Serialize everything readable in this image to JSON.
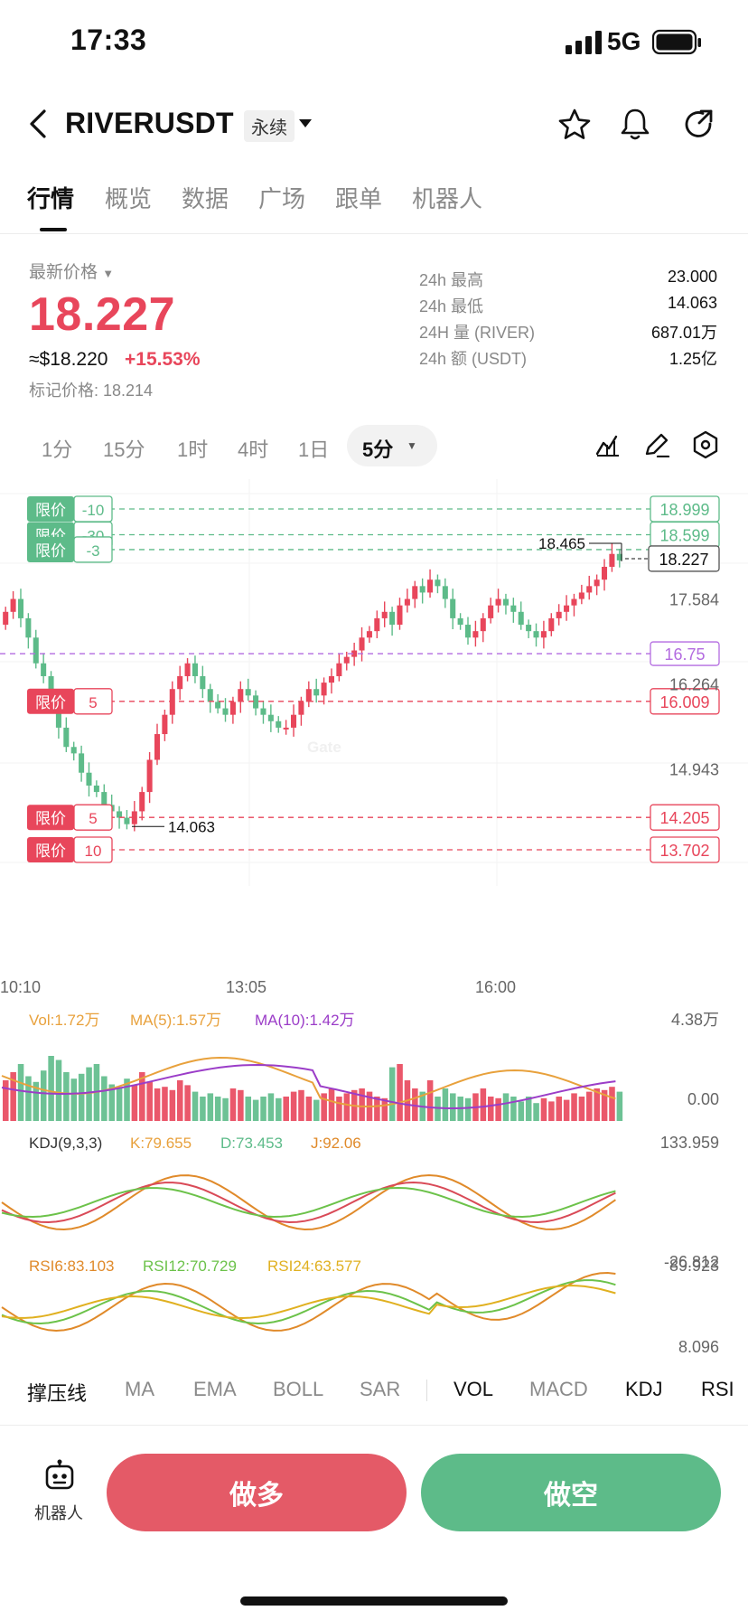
{
  "status": {
    "time": "17:33",
    "network": "5G"
  },
  "header": {
    "symbol": "RIVERUSDT",
    "contract_type": "永续"
  },
  "tabs": [
    "行情",
    "概览",
    "数据",
    "广场",
    "跟单",
    "机器人"
  ],
  "price": {
    "label": "最新价格",
    "last": "18.227",
    "usd": "≈$18.220",
    "change": "+15.53%",
    "mark": "标记价格: 18.214"
  },
  "stats": [
    {
      "label": "24h  最高",
      "value": "23.000"
    },
    {
      "label": "24h  最低",
      "value": "14.063"
    },
    {
      "label": "24H  量 (RIVER)",
      "value": "687.01万"
    },
    {
      "label": "24h  额 (USDT)",
      "value": "1.25亿"
    }
  ],
  "timeframes": [
    "1分",
    "15分",
    "1时",
    "4时",
    "1日"
  ],
  "timeframe_selected": "5分",
  "chart": {
    "y_ticks": [
      "17.584",
      "16.264",
      "14.943"
    ],
    "x_ticks": [
      "10:10",
      "13:05",
      "16:00"
    ],
    "high_label": "18.465",
    "low_label": "14.063",
    "current_price": "18.227",
    "alert_line": "16.75",
    "order_lines": [
      {
        "tag": "限价",
        "qty": "-10",
        "price": "18.999",
        "side": "sell"
      },
      {
        "tag": "限价",
        "qty": "-30",
        "price": "18.599",
        "side": "sell"
      },
      {
        "tag": "限价",
        "qty": "-3",
        "price": "18.227",
        "side": "sell"
      },
      {
        "tag": "限价",
        "qty": "5",
        "price": "16.009",
        "side": "buy"
      },
      {
        "tag": "限价",
        "qty": "5",
        "price": "14.205",
        "side": "buy"
      },
      {
        "tag": "限价",
        "qty": "10",
        "price": "13.702",
        "side": "buy"
      }
    ],
    "volume": {
      "vol": "Vol:1.72万",
      "ma5": "MA(5):1.57万",
      "ma10": "MA(10):1.42万",
      "max": "4.38万",
      "min": "0.00"
    },
    "kdj": {
      "name": "KDJ(9,3,3)",
      "k": "K:79.655",
      "d": "D:73.453",
      "j": "J:92.06",
      "max": "133.959",
      "min": "-26.812"
    },
    "rsi": {
      "r6": "RSI6:83.103",
      "r12": "RSI12:70.729",
      "r24": "RSI24:63.577",
      "max": "89.923",
      "min": "8.096"
    }
  },
  "indicator_tabs": [
    "撑压线",
    "MA",
    "EMA",
    "BOLL",
    "SAR",
    "VOL",
    "MACD",
    "KDJ",
    "RSI"
  ],
  "buttons": {
    "long": "做多",
    "short": "做空",
    "robot": "机器人"
  },
  "colors": {
    "up": "#e8465b",
    "down": "#5dbb89",
    "ma5": "#e8a13c",
    "ma10": "#9b3dc8",
    "alert": "#b36be0"
  }
}
